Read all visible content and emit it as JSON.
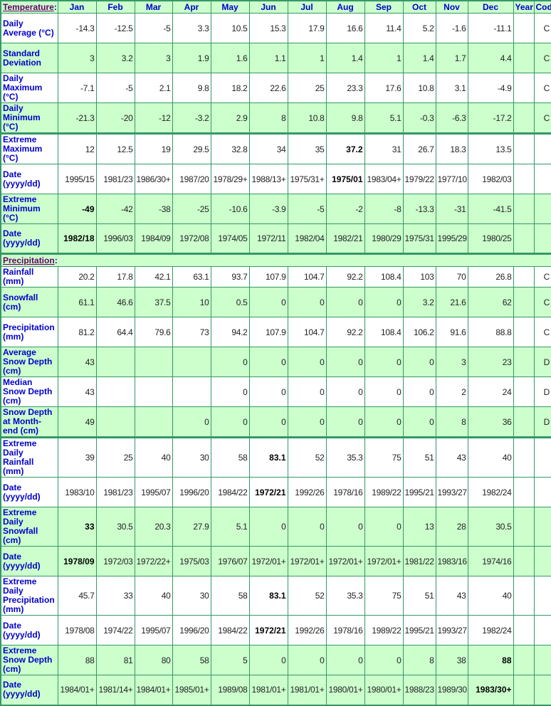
{
  "header": {
    "section_label": "Temperature",
    "months": [
      "Jan",
      "Feb",
      "Mar",
      "Apr",
      "May",
      "Jun",
      "Jul",
      "Aug",
      "Sep",
      "Oct",
      "Nov",
      "Dec"
    ],
    "year": "Year",
    "code": "Code"
  },
  "temperature_rows": [
    {
      "label": "Daily Average (°C)",
      "values": [
        "-14.3",
        "-12.5",
        "-5",
        "3.3",
        "10.5",
        "15.3",
        "17.9",
        "16.6",
        "11.4",
        "5.2",
        "-1.6",
        "-11.1"
      ],
      "year": "",
      "code": "C",
      "bold": []
    },
    {
      "label": "Standard Deviation",
      "values": [
        "3",
        "3.2",
        "3",
        "1.9",
        "1.6",
        "1.1",
        "1",
        "1.4",
        "1",
        "1.4",
        "1.7",
        "4.4"
      ],
      "year": "",
      "code": "C",
      "bold": []
    },
    {
      "label": "Daily Maximum (°C)",
      "values": [
        "-7.1",
        "-5",
        "2.1",
        "9.8",
        "18.2",
        "22.6",
        "25",
        "23.3",
        "17.6",
        "10.8",
        "3.1",
        "-4.9"
      ],
      "year": "",
      "code": "C",
      "bold": []
    },
    {
      "label": "Daily Minimum (°C)",
      "values": [
        "-21.3",
        "-20",
        "-12",
        "-3.2",
        "2.9",
        "8",
        "10.8",
        "9.8",
        "5.1",
        "-0.3",
        "-6.3",
        "-17.2"
      ],
      "year": "",
      "code": "C",
      "bold": []
    },
    {
      "label": "Extreme Maximum (°C)",
      "values": [
        "12",
        "12.5",
        "19",
        "29.5",
        "32.8",
        "34",
        "35",
        "37.2",
        "31",
        "26.7",
        "18.3",
        "13.5"
      ],
      "year": "",
      "code": "",
      "bold": [
        7
      ]
    },
    {
      "label": "Date (yyyy/dd)",
      "values": [
        "1995/15",
        "1981/23",
        "1986/30+",
        "1987/20",
        "1978/29+",
        "1988/13+",
        "1975/31+",
        "1975/01",
        "1983/04+",
        "1979/22",
        "1977/10",
        "1982/03"
      ],
      "year": "",
      "code": "",
      "bold": [
        7
      ]
    },
    {
      "label": "Extreme Minimum (°C)",
      "values": [
        "-49",
        "-42",
        "-38",
        "-25",
        "-10.6",
        "-3.9",
        "-5",
        "-2",
        "-8",
        "-13.3",
        "-31",
        "-41.5"
      ],
      "year": "",
      "code": "",
      "bold": [
        0
      ]
    },
    {
      "label": "Date (yyyy/dd)",
      "values": [
        "1982/18",
        "1996/03",
        "1984/09",
        "1972/08",
        "1974/05",
        "1972/11",
        "1982/04",
        "1982/21",
        "1980/29",
        "1975/31",
        "1995/29",
        "1980/25"
      ],
      "year": "",
      "code": "",
      "bold": [
        0
      ]
    }
  ],
  "precipitation_section_label": "Precipitation",
  "precipitation_rows": [
    {
      "label": "Rainfall (mm)",
      "values": [
        "20.2",
        "17.8",
        "42.1",
        "63.1",
        "93.7",
        "107.9",
        "104.7",
        "92.2",
        "108.4",
        "103",
        "70",
        "26.8"
      ],
      "year": "",
      "code": "C",
      "bold": []
    },
    {
      "label": "Snowfall (cm)",
      "values": [
        "61.1",
        "46.6",
        "37.5",
        "10",
        "0.5",
        "0",
        "0",
        "0",
        "0",
        "3.2",
        "21.6",
        "62"
      ],
      "year": "",
      "code": "C",
      "bold": []
    },
    {
      "label": "Precipitation (mm)",
      "values": [
        "81.2",
        "64.4",
        "79.6",
        "73",
        "94.2",
        "107.9",
        "104.7",
        "92.2",
        "108.4",
        "106.2",
        "91.6",
        "88.8"
      ],
      "year": "",
      "code": "C",
      "bold": []
    },
    {
      "label": "Average Snow Depth (cm)",
      "values": [
        "43",
        "",
        "",
        "",
        "0",
        "0",
        "0",
        "0",
        "0",
        "0",
        "3",
        "23"
      ],
      "year": "",
      "code": "D",
      "bold": []
    },
    {
      "label": "Median Snow Depth (cm)",
      "values": [
        "43",
        "",
        "",
        "",
        "0",
        "0",
        "0",
        "0",
        "0",
        "0",
        "2",
        "24"
      ],
      "year": "",
      "code": "D",
      "bold": []
    },
    {
      "label": "Snow Depth at Month-end (cm)",
      "values": [
        "49",
        "",
        "",
        "0",
        "0",
        "0",
        "0",
        "0",
        "0",
        "0",
        "8",
        "36"
      ],
      "year": "",
      "code": "D",
      "bold": []
    },
    {
      "label": "Extreme Daily Rainfall (mm)",
      "values": [
        "39",
        "25",
        "40",
        "30",
        "58",
        "83.1",
        "52",
        "35.3",
        "75",
        "51",
        "43",
        "40"
      ],
      "year": "",
      "code": "",
      "bold": [
        5
      ]
    },
    {
      "label": "Date (yyyy/dd)",
      "values": [
        "1983/10",
        "1981/23",
        "1995/07",
        "1996/20",
        "1984/22",
        "1972/21",
        "1992/26",
        "1978/16",
        "1989/22",
        "1995/21",
        "1993/27",
        "1982/24"
      ],
      "year": "",
      "code": "",
      "bold": [
        5
      ]
    },
    {
      "label": "Extreme Daily Snowfall (cm)",
      "values": [
        "33",
        "30.5",
        "20.3",
        "27.9",
        "5.1",
        "0",
        "0",
        "0",
        "0",
        "13",
        "28",
        "30.5"
      ],
      "year": "",
      "code": "",
      "bold": [
        0
      ]
    },
    {
      "label": "Date (yyyy/dd)",
      "values": [
        "1978/09",
        "1972/03",
        "1972/22+",
        "1975/03",
        "1976/07",
        "1972/01+",
        "1972/01+",
        "1972/01+",
        "1972/01+",
        "1981/22",
        "1983/16",
        "1974/16"
      ],
      "year": "",
      "code": "",
      "bold": [
        0
      ]
    },
    {
      "label": "Extreme Daily Precipitation (mm)",
      "values": [
        "45.7",
        "33",
        "40",
        "30",
        "58",
        "83.1",
        "52",
        "35.3",
        "75",
        "51",
        "43",
        "40"
      ],
      "year": "",
      "code": "",
      "bold": [
        5
      ]
    },
    {
      "label": "Date (yyyy/dd)",
      "values": [
        "1978/08",
        "1974/22",
        "1995/07",
        "1996/20",
        "1984/22",
        "1972/21",
        "1992/26",
        "1978/16",
        "1989/22",
        "1995/21",
        "1993/27",
        "1982/24"
      ],
      "year": "",
      "code": "",
      "bold": [
        5
      ]
    },
    {
      "label": "Extreme Snow Depth (cm)",
      "values": [
        "88",
        "81",
        "80",
        "58",
        "5",
        "0",
        "0",
        "0",
        "0",
        "8",
        "38",
        "88"
      ],
      "year": "",
      "code": "",
      "bold": [
        11
      ]
    },
    {
      "label": "Date (yyyy/dd)",
      "values": [
        "1984/01+",
        "1981/14+",
        "1984/01+",
        "1985/01+",
        "1989/08",
        "1981/01+",
        "1981/01+",
        "1980/01+",
        "1980/01+",
        "1988/23",
        "1989/30",
        "1983/30+"
      ],
      "year": "",
      "code": "",
      "bold": [
        11
      ]
    }
  ],
  "colors": {
    "header_bg": "#ccffcc",
    "alt_row_bg": "#ccffcc",
    "border": "#339966",
    "label_text": "#0000cc",
    "section_link": "#660066"
  }
}
